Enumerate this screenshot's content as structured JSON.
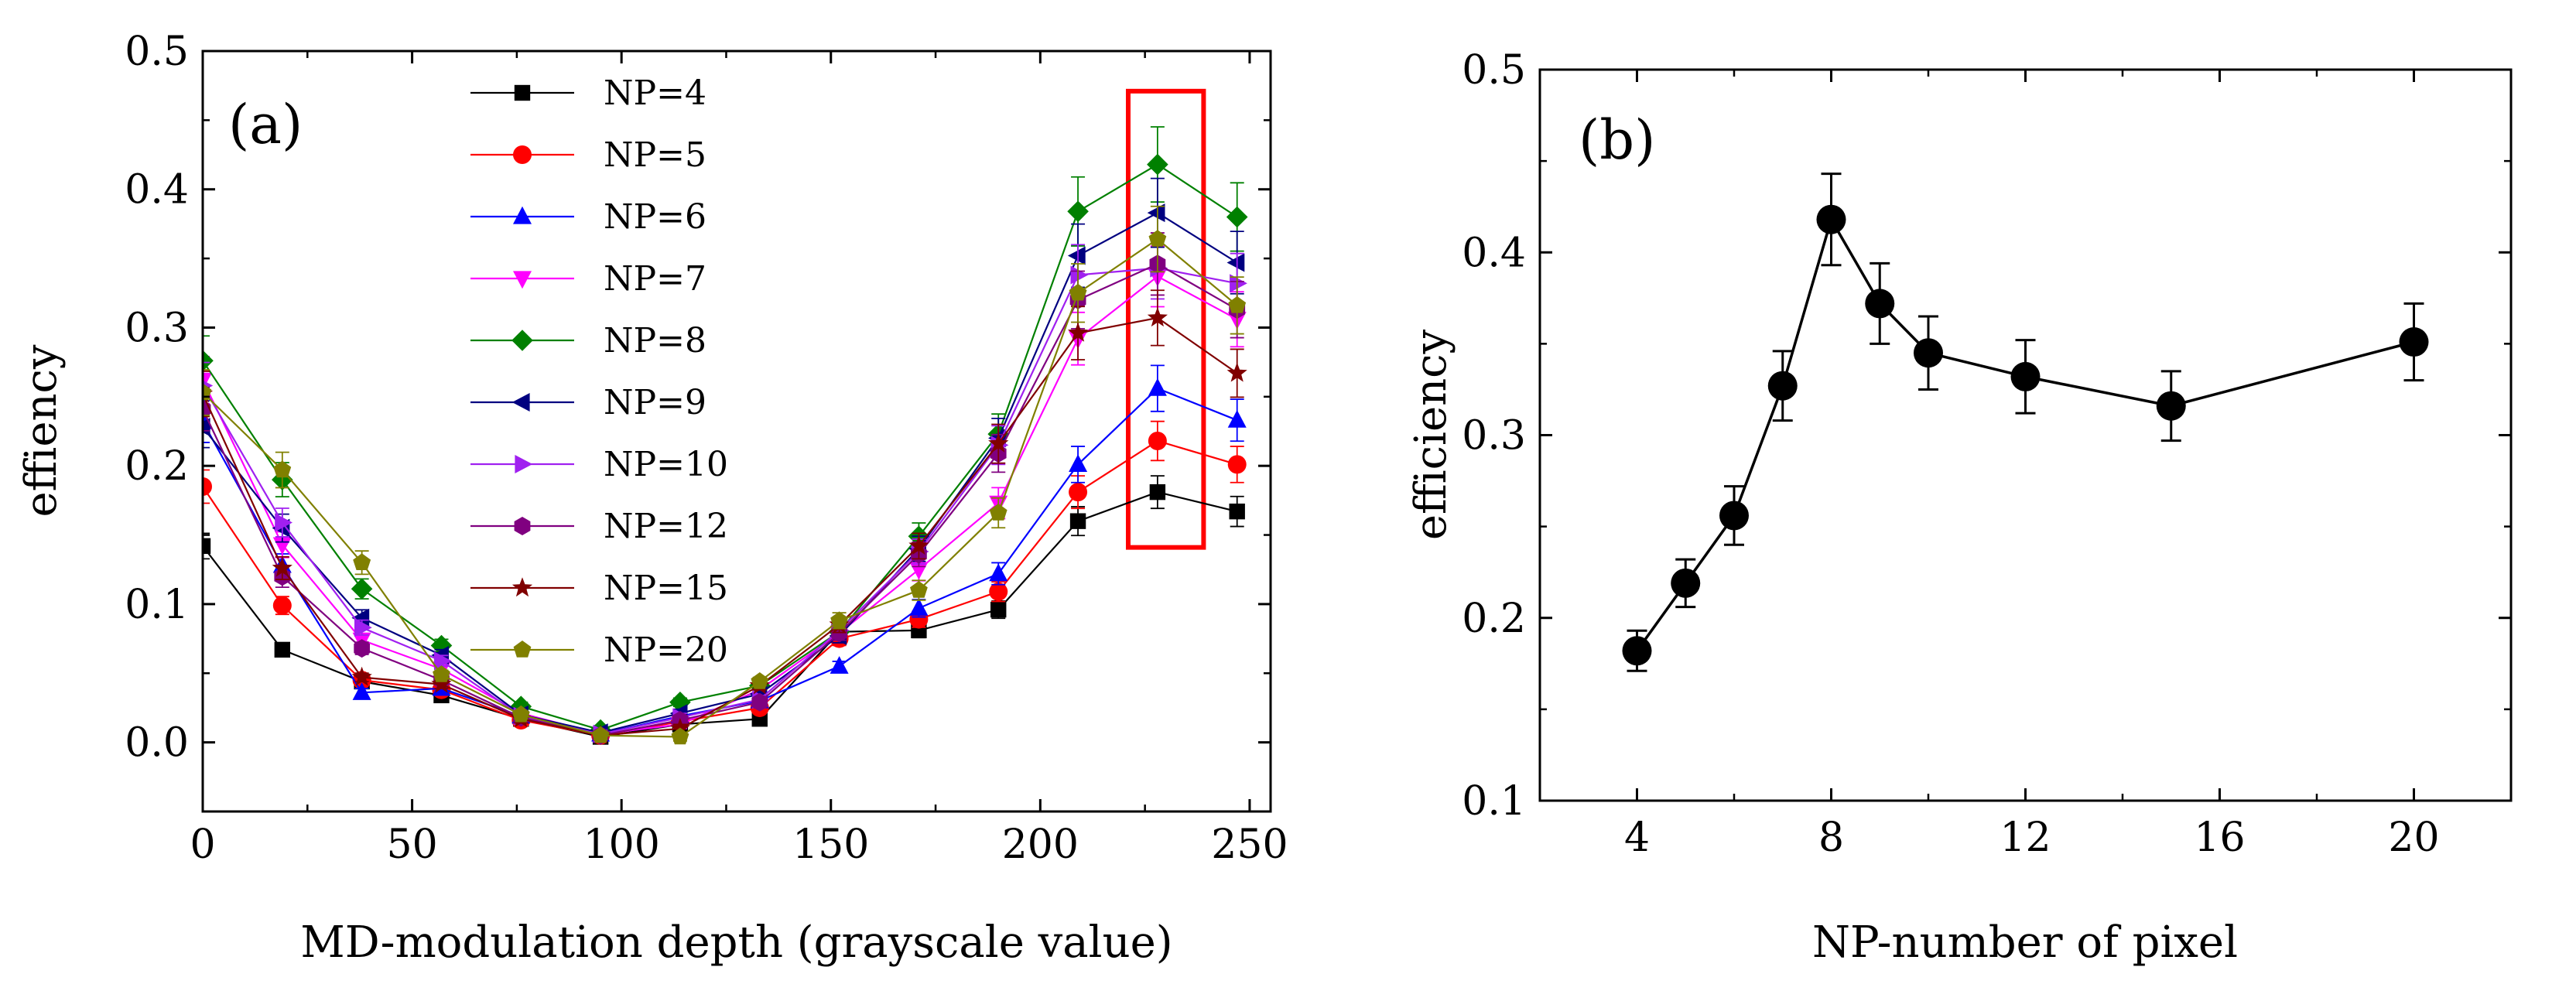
{
  "chart_data": [
    {
      "type": "line",
      "panel_label": "(a)",
      "xlabel": "MD-modulation depth (grayscale value)",
      "ylabel": "effiency",
      "xlim": [
        0,
        255
      ],
      "ylim": [
        -0.05,
        0.5
      ],
      "xticks": [
        "0",
        "50",
        "100",
        "150",
        "200",
        "250"
      ],
      "yticks": [
        "0.0",
        "0.1",
        "0.2",
        "0.3",
        "0.4",
        "0.5"
      ],
      "legend_position": "top-center",
      "x": [
        0,
        19,
        38,
        57,
        76,
        95,
        114,
        133,
        152,
        171,
        190,
        209,
        228,
        247
      ],
      "series": [
        {
          "name": "NP=4",
          "color": "#000000",
          "marker": "square",
          "values": [
            0.142,
            0.067,
            0.044,
            0.034,
            0.017,
            0.004,
            0.013,
            0.017,
            0.08,
            0.081,
            0.096,
            0.16,
            0.181,
            0.167
          ]
        },
        {
          "name": "NP=5",
          "color": "#ff0000",
          "marker": "circle",
          "values": [
            0.185,
            0.099,
            0.045,
            0.038,
            0.016,
            0.005,
            0.015,
            0.025,
            0.075,
            0.089,
            0.109,
            0.181,
            0.218,
            0.201
          ]
        },
        {
          "name": "NP=6",
          "color": "#0000ff",
          "marker": "triangle-up",
          "values": [
            0.232,
            0.128,
            0.036,
            0.039,
            0.019,
            0.006,
            0.019,
            0.03,
            0.055,
            0.097,
            0.122,
            0.201,
            0.256,
            0.233
          ]
        },
        {
          "name": "NP=7",
          "color": "#ff00ff",
          "marker": "triangle-down",
          "values": [
            0.262,
            0.143,
            0.074,
            0.053,
            0.021,
            0.006,
            0.013,
            0.038,
            0.079,
            0.125,
            0.173,
            0.292,
            0.337,
            0.306
          ]
        },
        {
          "name": "NP=8",
          "color": "#008000",
          "marker": "diamond",
          "values": [
            0.276,
            0.19,
            0.111,
            0.07,
            0.026,
            0.009,
            0.029,
            0.041,
            0.08,
            0.149,
            0.223,
            0.384,
            0.418,
            0.38
          ]
        },
        {
          "name": "NP=9",
          "color": "#000080",
          "marker": "triangle-left",
          "values": [
            0.228,
            0.155,
            0.09,
            0.063,
            0.02,
            0.007,
            0.021,
            0.035,
            0.077,
            0.14,
            0.22,
            0.352,
            0.383,
            0.347
          ]
        },
        {
          "name": "NP=10",
          "color": "#a020f0",
          "marker": "triangle-right",
          "values": [
            0.258,
            0.159,
            0.083,
            0.059,
            0.019,
            0.006,
            0.018,
            0.031,
            0.081,
            0.138,
            0.215,
            0.338,
            0.343,
            0.332
          ]
        },
        {
          "name": "NP=12",
          "color": "#800080",
          "marker": "hexagon",
          "values": [
            0.241,
            0.12,
            0.068,
            0.045,
            0.018,
            0.005,
            0.016,
            0.029,
            0.079,
            0.136,
            0.209,
            0.32,
            0.346,
            0.313
          ]
        },
        {
          "name": "NP=15",
          "color": "#800000",
          "marker": "star",
          "values": [
            0.252,
            0.126,
            0.047,
            0.042,
            0.017,
            0.005,
            0.01,
            0.041,
            0.085,
            0.142,
            0.216,
            0.296,
            0.307,
            0.267
          ]
        },
        {
          "name": "NP=20",
          "color": "#808000",
          "marker": "pentagon",
          "values": [
            0.253,
            0.197,
            0.13,
            0.049,
            0.02,
            0.005,
            0.004,
            0.044,
            0.088,
            0.11,
            0.166,
            0.325,
            0.364,
            0.316
          ]
        }
      ],
      "highlight_box": {
        "x_range": [
          221,
          239
        ],
        "y_range": [
          0.141,
          0.471
        ],
        "color": "#ff0000"
      }
    },
    {
      "type": "scatter",
      "panel_label": "(b)",
      "xlabel": "NP-number of pixel",
      "ylabel": "efficiency",
      "xlim": [
        2,
        22
      ],
      "ylim": [
        0.1,
        0.5
      ],
      "xticks": [
        "4",
        "8",
        "12",
        "16",
        "20"
      ],
      "yticks": [
        "0.1",
        "0.2",
        "0.3",
        "0.4",
        "0.5"
      ],
      "x": [
        4,
        5,
        6,
        7,
        8,
        9,
        10,
        12,
        15,
        20
      ],
      "values": [
        0.182,
        0.219,
        0.256,
        0.327,
        0.418,
        0.372,
        0.345,
        0.332,
        0.316,
        0.351
      ],
      "errors": [
        0.011,
        0.013,
        0.016,
        0.019,
        0.025,
        0.022,
        0.02,
        0.02,
        0.019,
        0.021
      ],
      "color": "#000000"
    }
  ]
}
